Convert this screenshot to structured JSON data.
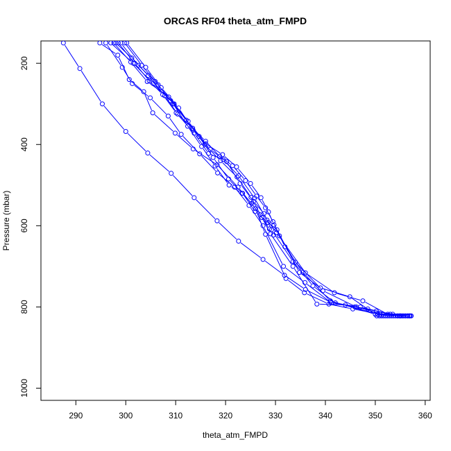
{
  "chart_data": {
    "type": "line",
    "title": "ORCAS RF04 theta_atm_FMPD",
    "xlabel": "theta_atm_FMPD",
    "ylabel": "Pressure (mbar)",
    "xlim": [
      283,
      361
    ],
    "ylim": [
      1030,
      145
    ],
    "y_reversed": true,
    "grid": false,
    "legend": "none",
    "x_ticks": [
      290,
      300,
      310,
      320,
      330,
      340,
      350,
      360
    ],
    "y_ticks": [
      200,
      400,
      600,
      800,
      1000
    ],
    "series_color": "#0000ff",
    "marker": "open-circle",
    "line_style": "solid with gaps at markers",
    "series": [
      {
        "x": [
          287.5,
          290.8,
          295.3,
          300.0,
          304.4,
          309.1,
          313.7,
          318.3,
          322.6,
          327.5,
          331.8,
          336.0,
          341.0,
          345.9,
          350.2,
          353.5
        ],
        "y": [
          150,
          213,
          300,
          368,
          421,
          471,
          531,
          588,
          638,
          683,
          722,
          757,
          788,
          800,
          810,
          818
        ]
      },
      {
        "x": [
          294.8,
          298.4,
          300.7,
          303.6,
          305.4,
          309.9,
          313.5,
          318.3,
          322.5,
          326.0,
          328.0,
          332.1,
          335.8,
          340.7,
          345.5,
          351.0,
          355.0
        ],
        "y": [
          150,
          180,
          240,
          270,
          322,
          372,
          411,
          450,
          505,
          558,
          621,
          730,
          765,
          793,
          805,
          818,
          822
        ]
      },
      {
        "x": [
          296.0,
          299.3,
          301.3,
          304.9,
          308.5,
          311.1,
          314.8,
          318.4,
          321.8,
          324.7,
          327.5,
          331.6,
          335.9,
          341.2,
          347.0,
          353.0,
          357.0
        ],
        "y": [
          150,
          210,
          250,
          285,
          330,
          375,
          423,
          470,
          505,
          550,
          600,
          700,
          740,
          790,
          800,
          818,
          822
        ]
      },
      {
        "x": [
          298.0,
          301.2,
          304.5,
          307.8,
          310.4,
          313.4,
          315.8,
          319.0,
          322.3,
          325.1,
          327.3,
          329.0,
          333.5,
          338.3,
          344.0,
          350.5,
          356.5
        ],
        "y": [
          150,
          187,
          230,
          280,
          325,
          360,
          400,
          440,
          480,
          530,
          580,
          620,
          700,
          793,
          795,
          818,
          822
        ]
      },
      {
        "x": [
          299.0,
          302.5,
          305.9,
          309.0,
          312.1,
          314.7,
          317.5,
          320.6,
          323.4,
          325.9,
          328.5,
          330.3,
          334.8,
          339.0,
          344.9,
          350.0,
          355.5
        ],
        "y": [
          150,
          205,
          245,
          292,
          340,
          380,
          432,
          485,
          520,
          565,
          592,
          610,
          715,
          753,
          775,
          818,
          822
        ]
      },
      {
        "x": [
          298.5,
          301.8,
          304.7,
          307.4,
          310.1,
          313.7,
          316.6,
          319.5,
          322.6,
          325.8,
          328.3,
          330.2,
          336.0,
          341.8,
          347.5,
          352.5,
          356.0
        ],
        "y": [
          150,
          200,
          243,
          277,
          322,
          372,
          422,
          437,
          477,
          532,
          586,
          617,
          716,
          765,
          785,
          818,
          822
        ]
      },
      {
        "x": [
          300.2,
          304.0,
          307.1,
          310.6,
          313.5,
          316.9,
          320.2,
          322.9,
          325.6,
          327.7,
          329.2,
          333.5,
          337.5,
          342.0,
          348.5,
          354.5
        ],
        "y": [
          150,
          210,
          260,
          310,
          365,
          412,
          442,
          496,
          540,
          570,
          610,
          688,
          748,
          790,
          805,
          822
        ]
      },
      {
        "x": [
          297.0,
          301.5,
          305.5,
          309.7,
          313.4,
          316.0,
          318.8,
          321.4,
          324.0,
          326.2,
          328.0,
          329.5,
          331.9,
          335.5,
          341.0,
          350.0,
          355.0
        ],
        "y": [
          150,
          200,
          250,
          300,
          360,
          392,
          429,
          452,
          489,
          527,
          556,
          590,
          652,
          715,
          785,
          818,
          822
        ]
      },
      {
        "x": [
          297.6,
          301.0,
          304.3,
          308.6,
          312.5,
          316.0,
          319.4,
          322.2,
          325.0,
          327.1,
          328.6,
          329.7,
          330.8,
          334.0,
          339.5,
          346.2,
          351.5,
          356.8
        ],
        "y": [
          150,
          197,
          245,
          283,
          343,
          398,
          425,
          455,
          496,
          531,
          566,
          598,
          625,
          690,
          760,
          800,
          818,
          822
        ]
      },
      {
        "x": [
          299.8,
          303.2,
          306.5,
          309.5,
          312.4,
          315.2,
          317.9,
          320.7,
          323.3,
          325.2,
          326.9,
          328.8,
          329.6
        ],
        "y": [
          150,
          205,
          253,
          300,
          355,
          405,
          453,
          500,
          520,
          545,
          573,
          608,
          623
        ]
      },
      {
        "x": [
          350.3,
          350.8,
          351.2,
          351.6,
          352.0,
          352.4,
          352.8,
          353.2,
          353.6,
          354.0,
          354.4,
          354.8,
          355.2,
          355.6,
          356.0,
          356.4,
          356.8,
          357.2
        ],
        "y": [
          822,
          822,
          822,
          822,
          822,
          822,
          822,
          822,
          822,
          822,
          822,
          822,
          822,
          822,
          822,
          822,
          822,
          822
        ]
      }
    ]
  }
}
